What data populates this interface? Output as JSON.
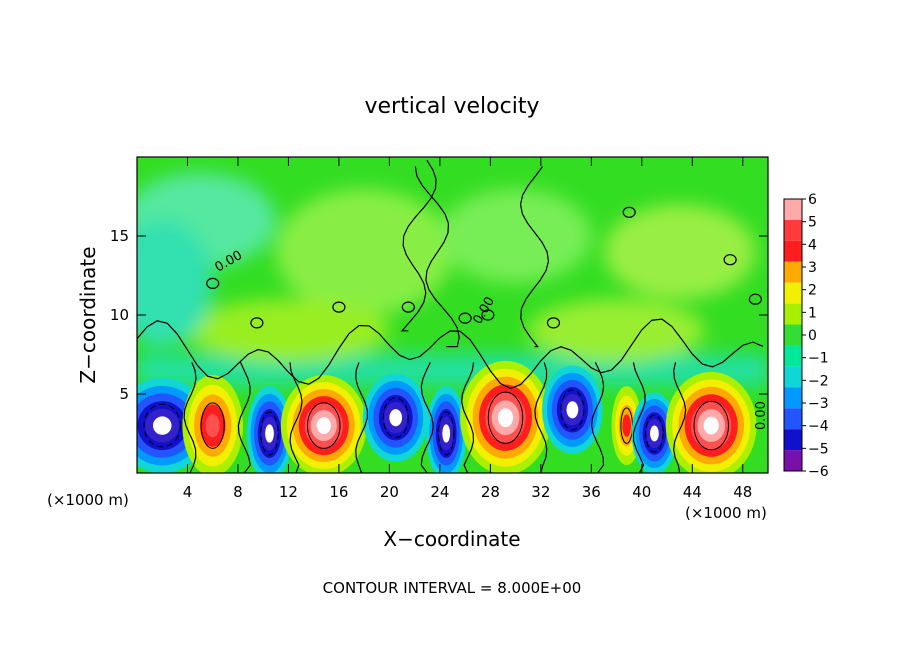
{
  "chart_data": {
    "type": "heatmap",
    "title": "vertical velocity",
    "xlabel": "X−coordinate",
    "ylabel": "Z−coordinate",
    "x_unit_label": "(×1000 m)",
    "y_unit_label": "(×1000 m)",
    "xlim": [
      0,
      50
    ],
    "ylim": [
      0,
      20
    ],
    "x_ticks": [
      "4",
      "8",
      "12",
      "16",
      "20",
      "24",
      "28",
      "32",
      "36",
      "40",
      "44",
      "48"
    ],
    "y_ticks": [
      "5",
      "10",
      "15"
    ],
    "colorbar_levels": [
      "6",
      "5",
      "4",
      "3",
      "2",
      "1",
      "0",
      "−1",
      "−2",
      "−3",
      "−4",
      "−5",
      "−6"
    ],
    "colorbar_colors": [
      "#ffaaaa",
      "#ff3b3b",
      "#ff1e1e",
      "#ffaa00",
      "#f0f000",
      "#a8f000",
      "#33dd33",
      "#00e899",
      "#11d6d6",
      "#0099ff",
      "#2255ff",
      "#1111cc",
      "#7711aa"
    ],
    "contour_label": "0.00",
    "footer": "CONTOUR INTERVAL = 8.000E+00",
    "cells": [
      {
        "x": 2,
        "z": 3,
        "w": 3.8,
        "h": 3.0,
        "sign": -1,
        "peak": 6
      },
      {
        "x": 6,
        "z": 3,
        "w": 2.4,
        "h": 3.2,
        "sign": 1,
        "peak": 4
      },
      {
        "x": 10.5,
        "z": 2.5,
        "w": 1.8,
        "h": 3.0,
        "sign": -1,
        "peak": 5
      },
      {
        "x": 14.8,
        "z": 3,
        "w": 3.4,
        "h": 3.2,
        "sign": 1,
        "peak": 6
      },
      {
        "x": 20.5,
        "z": 3.5,
        "w": 2.6,
        "h": 2.8,
        "sign": -1,
        "peak": 6
      },
      {
        "x": 24.5,
        "z": 2.5,
        "w": 1.6,
        "h": 3.0,
        "sign": -1,
        "peak": 5
      },
      {
        "x": 29.2,
        "z": 3.5,
        "w": 3.6,
        "h": 3.6,
        "sign": 1,
        "peak": 6
      },
      {
        "x": 34.5,
        "z": 4,
        "w": 2.4,
        "h": 2.8,
        "sign": -1,
        "peak": 6
      },
      {
        "x": 38.8,
        "z": 3,
        "w": 1.2,
        "h": 2.5,
        "sign": 1,
        "peak": 3
      },
      {
        "x": 41,
        "z": 2.5,
        "w": 1.8,
        "h": 2.6,
        "sign": -1,
        "peak": 6
      },
      {
        "x": 45.5,
        "z": 3,
        "w": 3.6,
        "h": 3.4,
        "sign": 1,
        "peak": 6
      }
    ]
  }
}
